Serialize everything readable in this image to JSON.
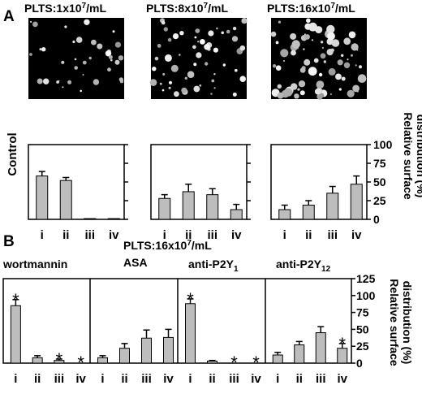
{
  "panel_a": {
    "letter": "A",
    "row_label": "Control",
    "columns": [
      {
        "title": "PLTS:1x10",
        "exp": "7",
        "unit": "/mL",
        "density": 0.35
      },
      {
        "title": "PLTS:8x10",
        "exp": "7",
        "unit": "/mL",
        "density": 0.65
      },
      {
        "title": "PLTS:16x10",
        "exp": "7",
        "unit": "/mL",
        "density": 1.0
      }
    ],
    "ylabel_line1": "Relative surface",
    "ylabel_line2": "distribution (%)"
  },
  "panel_b": {
    "letter": "B",
    "header": "PLTS:16x10",
    "header_exp": "7",
    "header_unit": "/mL",
    "ylabel_line1": "Relative surface",
    "ylabel_line2": "distribution (%)",
    "treatments": [
      {
        "name": "wortmannin",
        "sub": ""
      },
      {
        "name": "ASA",
        "sub": ""
      },
      {
        "name": "anti-P2Y",
        "sub": "1"
      },
      {
        "name": "anti-P2Y",
        "sub": "12"
      }
    ]
  },
  "chart_data": [
    {
      "type": "bar",
      "panel": "A",
      "subplot": "PLTS:1x10^7/mL",
      "categories": [
        "i",
        "ii",
        "iii",
        "iv"
      ],
      "values": [
        58,
        52,
        1,
        1
      ],
      "errors": [
        6,
        4,
        0,
        0
      ],
      "ylim": [
        0,
        100
      ],
      "yticks": [
        0,
        25,
        50,
        75,
        100
      ],
      "ylabel": "",
      "bar_color": "#bdbdbd"
    },
    {
      "type": "bar",
      "panel": "A",
      "subplot": "PLTS:8x10^7/mL",
      "categories": [
        "i",
        "ii",
        "iii",
        "iv"
      ],
      "values": [
        28,
        37,
        33,
        13
      ],
      "errors": [
        5,
        10,
        8,
        7
      ],
      "ylim": [
        0,
        100
      ],
      "yticks": [
        0,
        25,
        50,
        75,
        100
      ],
      "ylabel": "",
      "bar_color": "#bdbdbd"
    },
    {
      "type": "bar",
      "panel": "A",
      "subplot": "PLTS:16x10^7/mL",
      "categories": [
        "i",
        "ii",
        "iii",
        "iv"
      ],
      "values": [
        13,
        19,
        35,
        47
      ],
      "errors": [
        6,
        6,
        9,
        11
      ],
      "ylim": [
        0,
        100
      ],
      "yticks": [
        0,
        25,
        50,
        75,
        100
      ],
      "ytick_labels": [
        "0",
        "25",
        "50",
        "75",
        "100"
      ],
      "ylabel": "Relative surface distribution (%)",
      "bar_color": "#bdbdbd"
    },
    {
      "type": "bar",
      "panel": "B",
      "subplot": "wortmannin",
      "categories": [
        "i",
        "ii",
        "iii",
        "iv"
      ],
      "values": [
        85,
        8,
        4,
        0
      ],
      "errors": [
        9,
        3,
        2,
        0
      ],
      "significant": [
        true,
        false,
        true,
        true
      ],
      "ylim": [
        0,
        125
      ],
      "yticks": [
        0,
        25,
        50,
        75,
        100,
        125
      ],
      "bar_color": "#bdbdbd"
    },
    {
      "type": "bar",
      "panel": "B",
      "subplot": "ASA",
      "categories": [
        "i",
        "ii",
        "iii",
        "iv"
      ],
      "values": [
        8,
        22,
        37,
        38
      ],
      "errors": [
        3,
        7,
        12,
        12
      ],
      "significant": [
        false,
        false,
        false,
        false
      ],
      "ylim": [
        0,
        125
      ],
      "yticks": [
        0,
        25,
        50,
        75,
        100,
        125
      ],
      "bar_color": "#bdbdbd"
    },
    {
      "type": "bar",
      "panel": "B",
      "subplot": "anti-P2Y1",
      "categories": [
        "i",
        "ii",
        "iii",
        "iv"
      ],
      "values": [
        88,
        3,
        0,
        0
      ],
      "errors": [
        7,
        1,
        0,
        0
      ],
      "significant": [
        true,
        false,
        true,
        true
      ],
      "ylim": [
        0,
        125
      ],
      "yticks": [
        0,
        25,
        50,
        75,
        100,
        125
      ],
      "bar_color": "#bdbdbd"
    },
    {
      "type": "bar",
      "panel": "B",
      "subplot": "anti-P2Y12",
      "categories": [
        "i",
        "ii",
        "iii",
        "iv"
      ],
      "values": [
        12,
        27,
        45,
        22
      ],
      "errors": [
        4,
        5,
        9,
        7
      ],
      "significant": [
        false,
        false,
        false,
        true
      ],
      "ylim": [
        0,
        125
      ],
      "yticks": [
        0,
        25,
        50,
        75,
        100,
        125
      ],
      "ytick_labels": [
        "0",
        "25",
        "50",
        "75",
        "100",
        "125"
      ],
      "ylabel": "Relative surface distribution (%)",
      "bar_color": "#bdbdbd"
    }
  ]
}
